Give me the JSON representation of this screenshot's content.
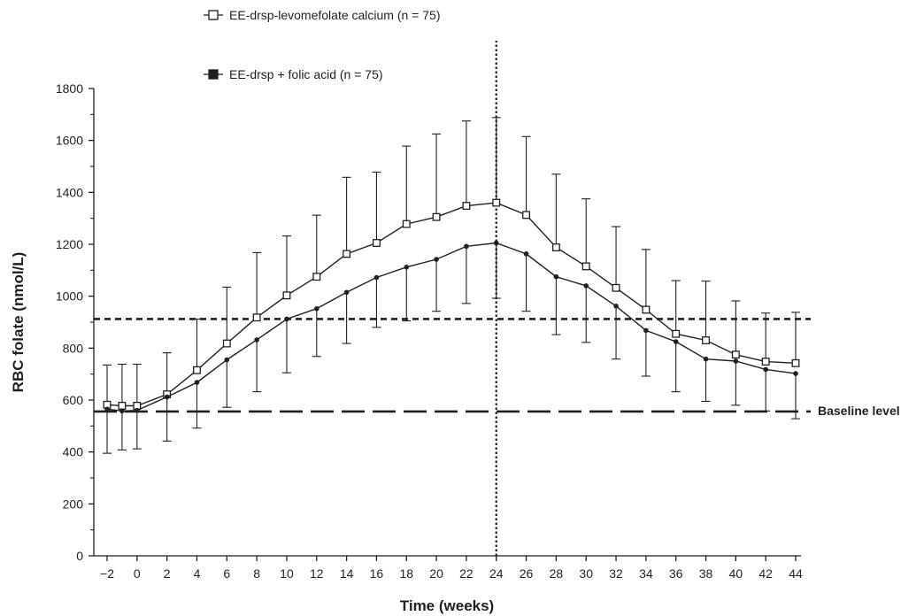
{
  "chart_data": {
    "type": "line",
    "xlabel": "Time (weeks)",
    "ylabel": "RBC folate (nmol/L)",
    "ylim": [
      0,
      1800
    ],
    "xlim": [
      -2,
      44
    ],
    "x_ticks": [
      -2,
      0,
      2,
      4,
      6,
      8,
      10,
      12,
      14,
      16,
      18,
      20,
      22,
      24,
      26,
      28,
      30,
      32,
      34,
      36,
      38,
      40,
      42,
      44
    ],
    "y_ticks": [
      0,
      200,
      400,
      600,
      800,
      1000,
      1200,
      1400,
      1600,
      1800
    ],
    "grid": false,
    "legend_position": "top-left",
    "x": [
      -2,
      -1,
      0,
      2,
      4,
      6,
      8,
      10,
      12,
      14,
      16,
      18,
      20,
      22,
      24,
      26,
      28,
      30,
      32,
      34,
      36,
      38,
      40,
      42,
      44
    ],
    "series": [
      {
        "name": "EE-drsp-levomefolate calcium (n = 75)",
        "marker": "open-square",
        "color": "#231f20",
        "values": [
          582,
          578,
          578,
          622,
          715,
          818,
          918,
          1003,
          1075,
          1163,
          1205,
          1278,
          1305,
          1348,
          1360,
          1313,
          1188,
          1115,
          1032,
          948,
          855,
          830,
          775,
          748,
          742
        ],
        "error_upper": [
          735,
          738,
          738,
          782,
          912,
          1035,
          1168,
          1232,
          1312,
          1458,
          1478,
          1578,
          1625,
          1675,
          1688,
          1615,
          1470,
          1375,
          1268,
          1180,
          1060,
          1058,
          982,
          935,
          938
        ]
      },
      {
        "name": "EE-drsp + folic acid (n = 75)",
        "marker": "filled-square",
        "color": "#231f20",
        "values": [
          565,
          558,
          560,
          612,
          668,
          755,
          832,
          912,
          952,
          1015,
          1072,
          1112,
          1142,
          1192,
          1205,
          1163,
          1075,
          1040,
          962,
          868,
          825,
          758,
          750,
          718,
          702
        ],
        "error_lower": [
          395,
          408,
          412,
          442,
          492,
          572,
          632,
          705,
          768,
          818,
          880,
          905,
          942,
          972,
          992,
          942,
          852,
          822,
          758,
          692,
          632,
          595,
          580,
          558,
          528
        ]
      }
    ],
    "reference_lines": [
      {
        "label": "",
        "orientation": "horizontal",
        "value": 912,
        "style": "short-dash"
      },
      {
        "label": "Baseline level",
        "orientation": "horizontal",
        "value": 556,
        "style": "long-dash"
      },
      {
        "label": "",
        "orientation": "vertical",
        "value": 24,
        "style": "dotted"
      }
    ]
  }
}
